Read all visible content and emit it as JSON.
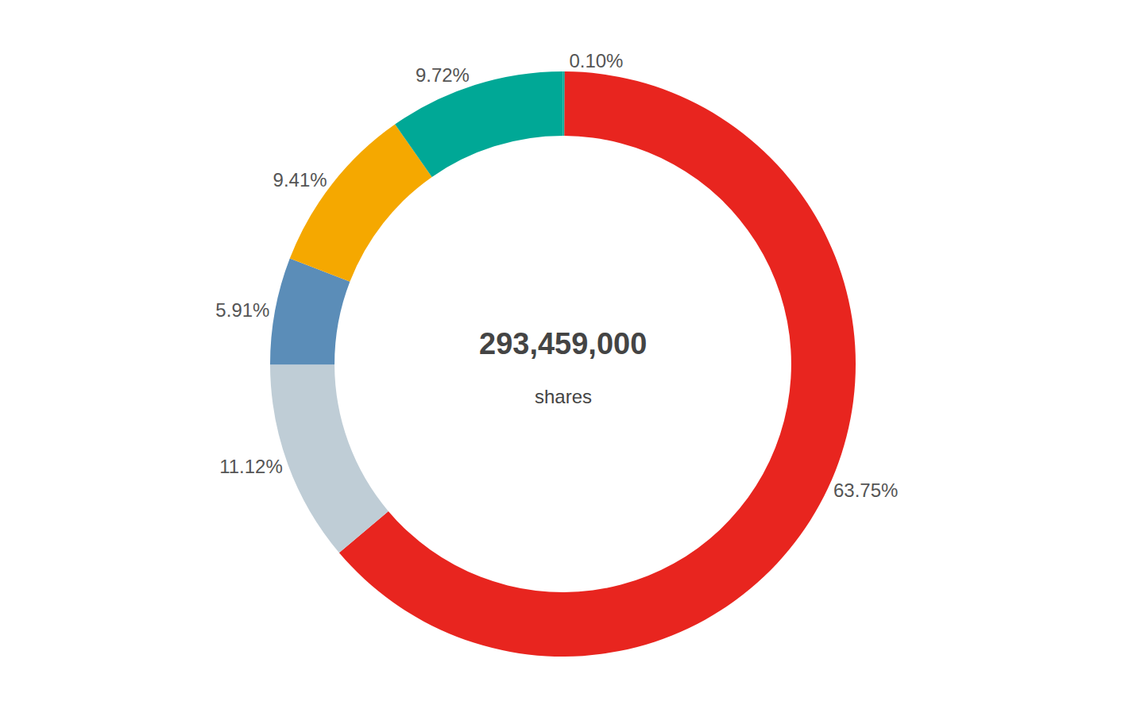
{
  "chart_data": {
    "type": "pie",
    "values": [
      0.1,
      63.75,
      11.12,
      5.91,
      9.41,
      9.72
    ],
    "value_labels": [
      "0.10%",
      "63.75%",
      "11.12%",
      "5.91%",
      "9.41%",
      "9.72%"
    ],
    "colors": [
      "#00a896",
      "#e8251f",
      "#bfcdd6",
      "#5b8db8",
      "#f5a800",
      "#00a896"
    ],
    "data_labels": true,
    "annotations": [
      "293,459,000",
      "shares"
    ]
  }
}
